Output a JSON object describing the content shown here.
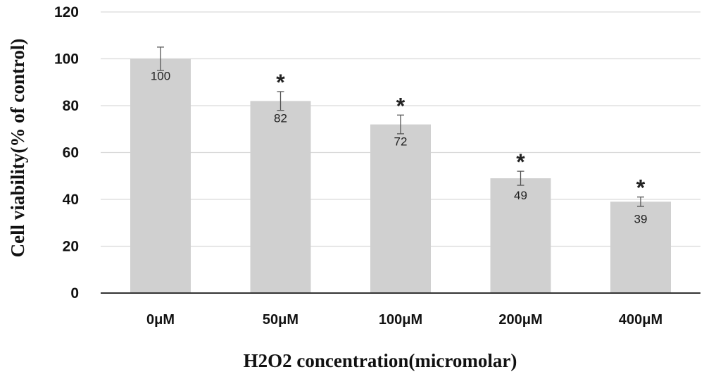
{
  "chart_data": {
    "type": "bar",
    "title": "",
    "xlabel": "H2O2 concentration(micromolar)",
    "ylabel": "Cell viability(% of control)",
    "categories": [
      "0μM",
      "50μM",
      "100μM",
      "200μM",
      "400μM"
    ],
    "values": [
      100,
      82,
      72,
      49,
      39
    ],
    "data_labels": [
      "100",
      "82",
      "72",
      "49",
      "39"
    ],
    "error_upper": [
      105,
      86,
      76,
      52,
      41
    ],
    "error_lower": [
      95,
      78,
      68,
      46,
      37
    ],
    "significance": [
      "",
      "*",
      "*",
      "*",
      "*"
    ],
    "ylim": [
      0,
      120
    ],
    "yticks": [
      0,
      20,
      40,
      60,
      80,
      100,
      120
    ],
    "ytick_labels": [
      "0",
      "20",
      "40",
      "60",
      "80",
      "100",
      "120"
    ],
    "grid": true,
    "bar_color": "#d0d0d0",
    "grid_color": "#d9d9d9",
    "axis_color": "#333333"
  }
}
